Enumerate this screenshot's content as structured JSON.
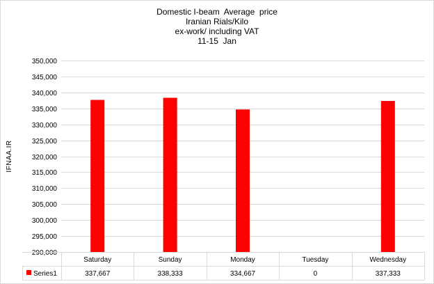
{
  "chart_data": {
    "type": "bar",
    "title_lines": [
      "Domestic I-beam  Average  price",
      "Iranian Rials/Kilo",
      "ex-work/ including VAT",
      "11-15  Jan"
    ],
    "ylabel": "IFNAA.IR",
    "xlabel": "",
    "ylim": [
      290000,
      350000
    ],
    "ytick_labels": [
      "290,000",
      "295,000",
      "300,000",
      "305,000",
      "310,000",
      "315,000",
      "320,000",
      "325,000",
      "330,000",
      "335,000",
      "340,000",
      "345,000",
      "350,000"
    ],
    "categories": [
      "Saturday",
      "Sunday",
      "Monday",
      "Tuesday",
      "Wednesday"
    ],
    "series": [
      {
        "name": "Series1",
        "values": [
          337667,
          338333,
          334667,
          0,
          337333
        ],
        "value_labels": [
          "337,667",
          "338,333",
          "334,667",
          "0",
          "337,333"
        ],
        "color": "#ff0000"
      }
    ],
    "grid": true,
    "legend": "data-table"
  }
}
